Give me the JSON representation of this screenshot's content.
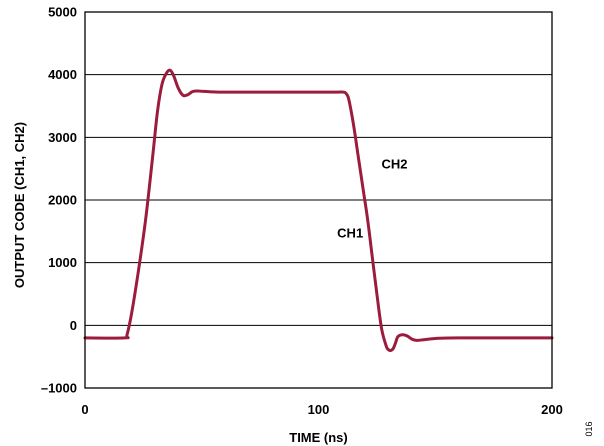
{
  "chart_data": {
    "type": "line",
    "xlabel": "TIME (ns)",
    "ylabel": "OUTPUT CODE (CH1, CH2)",
    "xlim": [
      0,
      200
    ],
    "ylim": [
      -1000,
      5000
    ],
    "x_ticks": [
      0,
      100,
      200
    ],
    "y_ticks": [
      -1000,
      0,
      1000,
      2000,
      3000,
      4000,
      5000
    ],
    "x_tick_labels": [
      "0",
      "100",
      "200"
    ],
    "y_tick_labels": [
      "–1000",
      "0",
      "1000",
      "2000",
      "3000",
      "4000",
      "5000"
    ],
    "grid": "horizontal",
    "series_color": "#9b1c3c",
    "series": [
      {
        "x": [
          0,
          17,
          18,
          20,
          23,
          26,
          29,
          31,
          33,
          35,
          36.5,
          38,
          40,
          42,
          44,
          46,
          48,
          50,
          55,
          60,
          80,
          100,
          108,
          111,
          112,
          113,
          115,
          117,
          119,
          121,
          123,
          125,
          127,
          129,
          130,
          131,
          132,
          133,
          134,
          136,
          138,
          140,
          142,
          145,
          150,
          160,
          200
        ],
        "y": [
          -200,
          -200,
          -150,
          200,
          900,
          1700,
          2700,
          3400,
          3850,
          4030,
          4070,
          3980,
          3780,
          3670,
          3680,
          3730,
          3740,
          3735,
          3725,
          3722,
          3722,
          3722,
          3722,
          3720,
          3690,
          3600,
          3200,
          2700,
          2200,
          1700,
          1100,
          500,
          -50,
          -330,
          -390,
          -400,
          -370,
          -280,
          -180,
          -150,
          -170,
          -220,
          -240,
          -230,
          -210,
          -200,
          -200
        ]
      }
    ],
    "annotations": [
      {
        "text": "CH2",
        "x": 127,
        "y": 2500
      },
      {
        "text": "CH1",
        "x": 108,
        "y": 1400
      }
    ]
  },
  "figure_id": "016"
}
